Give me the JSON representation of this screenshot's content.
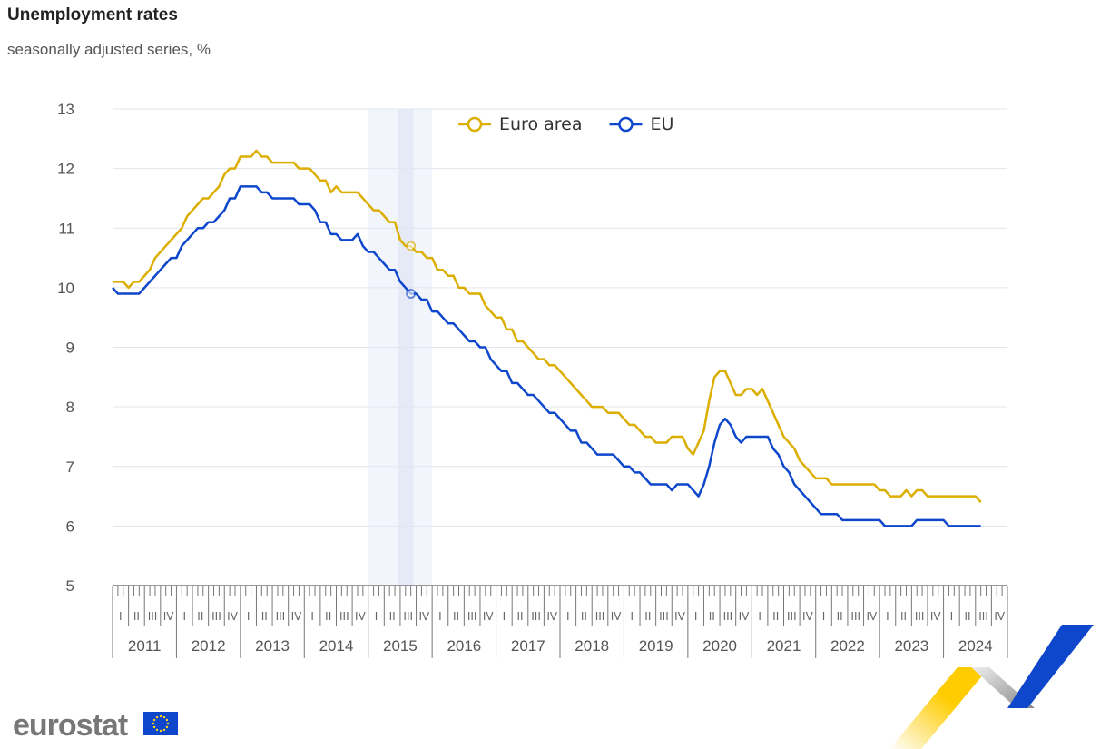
{
  "title": "Unemployment rates",
  "subtitle": "seasonally adjusted series, %",
  "logo_text": "eurostat",
  "chart_data": {
    "type": "line",
    "title": "Unemployment rates",
    "subtitle": "seasonally adjusted series, %",
    "frequency": "monthly",
    "start": "2011-01",
    "end": "2024-08",
    "ylim": [
      5,
      13
    ],
    "yticks": [
      5,
      6,
      7,
      8,
      9,
      10,
      11,
      12,
      13
    ],
    "grid": true,
    "legend": "top-center",
    "years": [
      "2011",
      "2012",
      "2013",
      "2014",
      "2015",
      "2016",
      "2017",
      "2018",
      "2019",
      "2020",
      "2021",
      "2022",
      "2023",
      "2024"
    ],
    "quarters": [
      "I",
      "II",
      "III",
      "IV"
    ],
    "highlight": {
      "period": "2015",
      "month": "2015-09"
    },
    "series": [
      {
        "name": "Euro area",
        "color": "#DBAE00",
        "values": [
          10.1,
          10.1,
          10.1,
          10.0,
          10.1,
          10.1,
          10.2,
          10.3,
          10.5,
          10.6,
          10.7,
          10.8,
          10.9,
          11.0,
          11.2,
          11.3,
          11.4,
          11.5,
          11.5,
          11.6,
          11.7,
          11.9,
          12.0,
          12.0,
          12.2,
          12.2,
          12.2,
          12.3,
          12.2,
          12.2,
          12.1,
          12.1,
          12.1,
          12.1,
          12.1,
          12.0,
          12.0,
          12.0,
          11.9,
          11.8,
          11.8,
          11.6,
          11.7,
          11.6,
          11.6,
          11.6,
          11.6,
          11.5,
          11.4,
          11.3,
          11.3,
          11.2,
          11.1,
          11.1,
          10.8,
          10.7,
          10.7,
          10.6,
          10.6,
          10.5,
          10.5,
          10.3,
          10.3,
          10.2,
          10.2,
          10.0,
          10.0,
          9.9,
          9.9,
          9.9,
          9.7,
          9.6,
          9.5,
          9.5,
          9.3,
          9.3,
          9.1,
          9.1,
          9.0,
          8.9,
          8.8,
          8.8,
          8.7,
          8.7,
          8.6,
          8.5,
          8.4,
          8.3,
          8.2,
          8.1,
          8.0,
          8.0,
          8.0,
          7.9,
          7.9,
          7.9,
          7.8,
          7.7,
          7.7,
          7.6,
          7.5,
          7.5,
          7.4,
          7.4,
          7.4,
          7.5,
          7.5,
          7.5,
          7.3,
          7.2,
          7.4,
          7.6,
          8.1,
          8.5,
          8.6,
          8.6,
          8.4,
          8.2,
          8.2,
          8.3,
          8.3,
          8.2,
          8.3,
          8.1,
          7.9,
          7.7,
          7.5,
          7.4,
          7.3,
          7.1,
          7.0,
          6.9,
          6.8,
          6.8,
          6.8,
          6.7,
          6.7,
          6.7,
          6.7,
          6.7,
          6.7,
          6.7,
          6.7,
          6.7,
          6.6,
          6.6,
          6.5,
          6.5,
          6.5,
          6.6,
          6.5,
          6.6,
          6.6,
          6.5,
          6.5,
          6.5,
          6.5,
          6.5,
          6.5,
          6.5,
          6.5,
          6.5,
          6.5,
          6.4
        ]
      },
      {
        "name": "EU",
        "color": "#0E47CB",
        "values": [
          10.0,
          9.9,
          9.9,
          9.9,
          9.9,
          9.9,
          10.0,
          10.1,
          10.2,
          10.3,
          10.4,
          10.5,
          10.5,
          10.7,
          10.8,
          10.9,
          11.0,
          11.0,
          11.1,
          11.1,
          11.2,
          11.3,
          11.5,
          11.5,
          11.7,
          11.7,
          11.7,
          11.7,
          11.6,
          11.6,
          11.5,
          11.5,
          11.5,
          11.5,
          11.5,
          11.4,
          11.4,
          11.4,
          11.3,
          11.1,
          11.1,
          10.9,
          10.9,
          10.8,
          10.8,
          10.8,
          10.9,
          10.7,
          10.6,
          10.6,
          10.5,
          10.4,
          10.3,
          10.3,
          10.1,
          10.0,
          9.9,
          9.9,
          9.8,
          9.8,
          9.6,
          9.6,
          9.5,
          9.4,
          9.4,
          9.3,
          9.2,
          9.1,
          9.1,
          9.0,
          9.0,
          8.8,
          8.7,
          8.6,
          8.6,
          8.4,
          8.4,
          8.3,
          8.2,
          8.2,
          8.1,
          8.0,
          7.9,
          7.9,
          7.8,
          7.7,
          7.6,
          7.6,
          7.4,
          7.4,
          7.3,
          7.2,
          7.2,
          7.2,
          7.2,
          7.1,
          7.0,
          7.0,
          6.9,
          6.9,
          6.8,
          6.7,
          6.7,
          6.7,
          6.7,
          6.6,
          6.7,
          6.7,
          6.7,
          6.6,
          6.5,
          6.7,
          7.0,
          7.4,
          7.7,
          7.8,
          7.7,
          7.5,
          7.4,
          7.5,
          7.5,
          7.5,
          7.5,
          7.5,
          7.3,
          7.2,
          7.0,
          6.9,
          6.7,
          6.6,
          6.5,
          6.4,
          6.3,
          6.2,
          6.2,
          6.2,
          6.2,
          6.1,
          6.1,
          6.1,
          6.1,
          6.1,
          6.1,
          6.1,
          6.1,
          6.0,
          6.0,
          6.0,
          6.0,
          6.0,
          6.0,
          6.1,
          6.1,
          6.1,
          6.1,
          6.1,
          6.1,
          6.0,
          6.0,
          6.0,
          6.0,
          6.0,
          6.0,
          6.0
        ]
      }
    ]
  }
}
